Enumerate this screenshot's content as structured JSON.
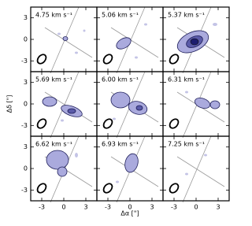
{
  "xlabel": "Δα [\"]",
  "ylabel": "Δδ [\"]",
  "xlim": [
    -4.5,
    4.5
  ],
  "ylim": [
    -4.5,
    4.5
  ],
  "xticks": [
    -3,
    0,
    3
  ],
  "yticks": [
    -3,
    0,
    3
  ],
  "panels": [
    {
      "label": "4.75 km s⁻¹"
    },
    {
      "label": "5.06 km s⁻¹"
    },
    {
      "label": "5.37 km s⁻¹"
    },
    {
      "label": "5.69 km s⁻¹"
    },
    {
      "label": "6.00 km s⁻¹"
    },
    {
      "label": "6.31 km s⁻¹"
    },
    {
      "label": "6.62 km s⁻¹"
    },
    {
      "label": "6.93 km s⁻¹"
    },
    {
      "label": "7.25 km s⁻¹"
    }
  ]
}
